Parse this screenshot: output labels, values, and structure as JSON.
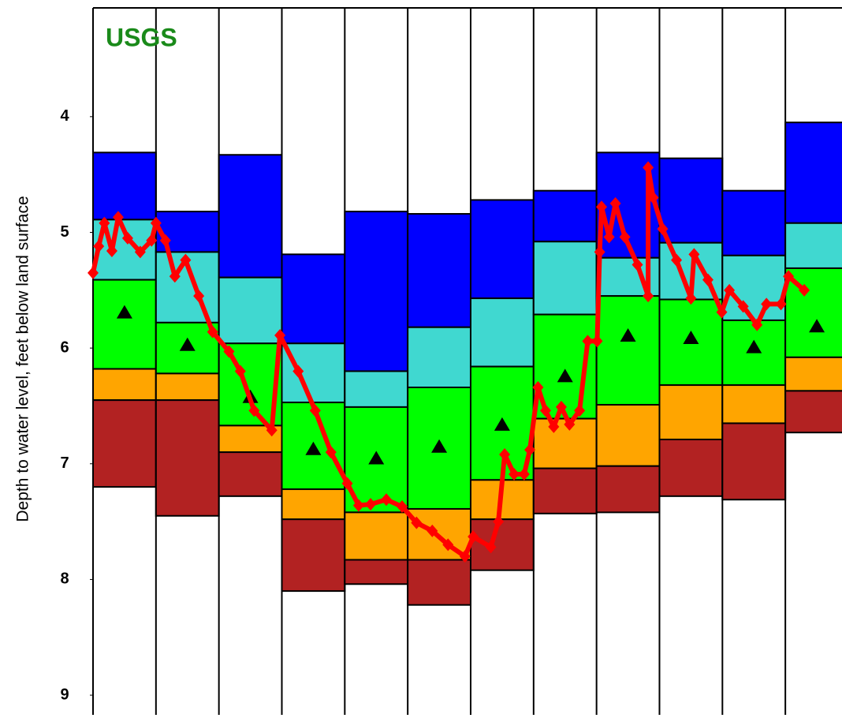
{
  "chart_data": {
    "type": "range_bar",
    "annotation": "USGS",
    "y_label": "Depth to water level, feet below land surface",
    "y_inverted": true,
    "ylim": [
      3.06,
      9.17
    ],
    "yticks": [
      4,
      5,
      6,
      7,
      8,
      9
    ],
    "xlim": [
      0,
      11.9
    ],
    "categories": [
      null,
      null,
      null,
      null,
      null,
      null,
      null,
      null,
      null,
      null,
      null,
      null
    ],
    "band_colors": [
      "#0000ff",
      "#40d8d0",
      "#00ff00",
      "#ffa500",
      "#b22222"
    ],
    "levels": [
      [
        4.31,
        4.82,
        4.33,
        5.19,
        4.82,
        4.84,
        4.72,
        4.64,
        4.31,
        4.36,
        4.64,
        4.05
      ],
      [
        4.89,
        5.17,
        5.39,
        5.96,
        6.2,
        5.82,
        5.57,
        5.08,
        5.22,
        5.09,
        5.2,
        4.92
      ],
      [
        5.41,
        5.78,
        5.96,
        6.47,
        6.51,
        6.34,
        6.16,
        5.71,
        5.55,
        5.58,
        5.76,
        5.31
      ],
      [
        6.18,
        6.22,
        6.67,
        7.22,
        7.42,
        7.39,
        7.14,
        6.61,
        6.49,
        6.32,
        6.32,
        6.08
      ],
      [
        6.45,
        6.45,
        6.9,
        7.48,
        7.83,
        7.83,
        7.48,
        7.04,
        7.02,
        6.79,
        6.65,
        6.37
      ],
      [
        7.2,
        7.45,
        7.28,
        8.1,
        8.04,
        8.22,
        7.92,
        7.43,
        7.42,
        7.28,
        7.31,
        6.73
      ]
    ],
    "medians": [
      5.69,
      5.97,
      6.42,
      6.87,
      6.95,
      6.85,
      6.66,
      6.24,
      5.89,
      5.91,
      5.99,
      5.81
    ],
    "median_color": "#000000",
    "series": [
      {
        "color": "#ff0000",
        "x": [
          0.0,
          0.09,
          0.18,
          0.3,
          0.4,
          0.55,
          0.75,
          0.93,
          1.0,
          1.15,
          1.3,
          1.47,
          1.68,
          1.9,
          2.16,
          2.34,
          2.56,
          2.84,
          2.97,
          3.26,
          3.53,
          3.78,
          4.04,
          4.22,
          4.41,
          4.66,
          4.91,
          5.14,
          5.39,
          5.64,
          5.91,
          6.04,
          6.32,
          6.44,
          6.54,
          6.69,
          6.85,
          6.94,
          7.07,
          7.19,
          7.32,
          7.44,
          7.57,
          7.73,
          7.86,
          8.01,
          8.05,
          8.08,
          8.2,
          8.3,
          8.45,
          8.65,
          8.82,
          8.82,
          8.9,
          9.05,
          9.27,
          9.5,
          9.55,
          9.77,
          9.99,
          10.11,
          10.33,
          10.55,
          10.7,
          10.93,
          11.05,
          11.3
        ],
        "values": [
          5.35,
          5.12,
          4.92,
          5.16,
          4.87,
          5.05,
          5.17,
          5.07,
          4.92,
          5.07,
          5.38,
          5.24,
          5.55,
          5.86,
          6.03,
          6.2,
          6.54,
          6.71,
          5.89,
          6.2,
          6.54,
          6.9,
          7.17,
          7.36,
          7.35,
          7.31,
          7.37,
          7.51,
          7.58,
          7.7,
          7.8,
          7.63,
          7.72,
          7.5,
          6.92,
          7.09,
          7.09,
          6.88,
          6.34,
          6.54,
          6.68,
          6.51,
          6.66,
          6.54,
          5.94,
          5.94,
          5.17,
          4.78,
          5.04,
          4.75,
          5.04,
          5.28,
          5.55,
          4.44,
          4.7,
          4.97,
          5.24,
          5.57,
          5.19,
          5.41,
          5.69,
          5.5,
          5.64,
          5.8,
          5.62,
          5.62,
          5.38,
          5.5
        ]
      }
    ]
  }
}
